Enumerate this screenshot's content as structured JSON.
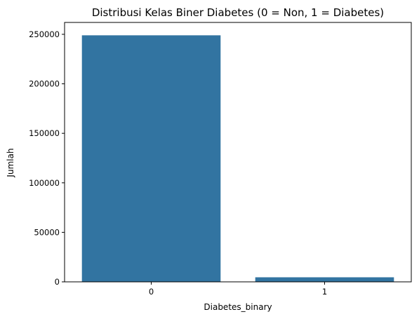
{
  "chart_data": {
    "type": "bar",
    "title": "Distribusi Kelas Biner Diabetes (0 = Non, 1 = Diabetes)",
    "xlabel": "Diabetes_binary",
    "ylabel": "Jumlah",
    "categories": [
      "0",
      "1"
    ],
    "values": [
      249000,
      4600
    ],
    "ylim": [
      0,
      262000
    ],
    "yticks": [
      0,
      50000,
      100000,
      150000,
      200000,
      250000
    ],
    "bar_color": "#3274a1",
    "grid": false,
    "legend": "none"
  }
}
